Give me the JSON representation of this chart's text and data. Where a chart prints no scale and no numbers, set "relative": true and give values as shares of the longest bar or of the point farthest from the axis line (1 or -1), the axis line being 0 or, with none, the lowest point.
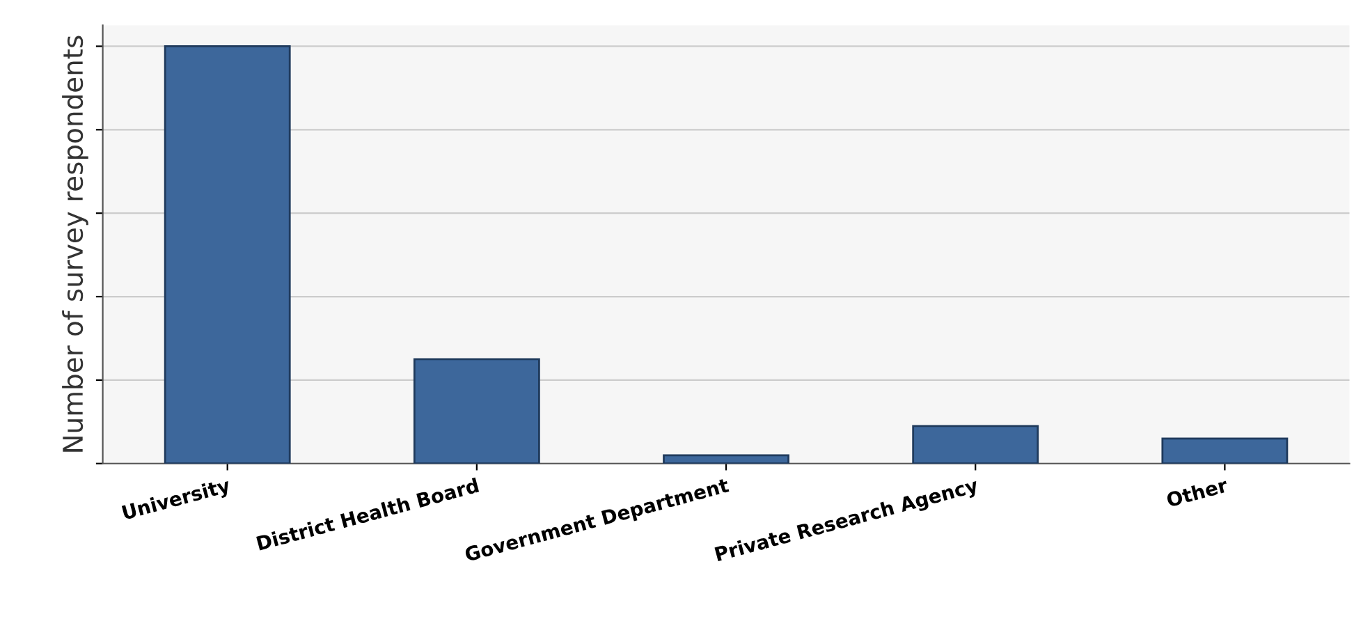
{
  "chart_data": {
    "type": "bar",
    "ylabel": "Number of survey respondents",
    "categories": [
      "University",
      "District Health Board",
      "Government Department",
      "Private Research Agency",
      "Other"
    ],
    "values": [
      1,
      0.25,
      0.02,
      0.09,
      0.06
    ],
    "color": "#3d679b",
    "relative": true,
    "grid": "y"
  }
}
